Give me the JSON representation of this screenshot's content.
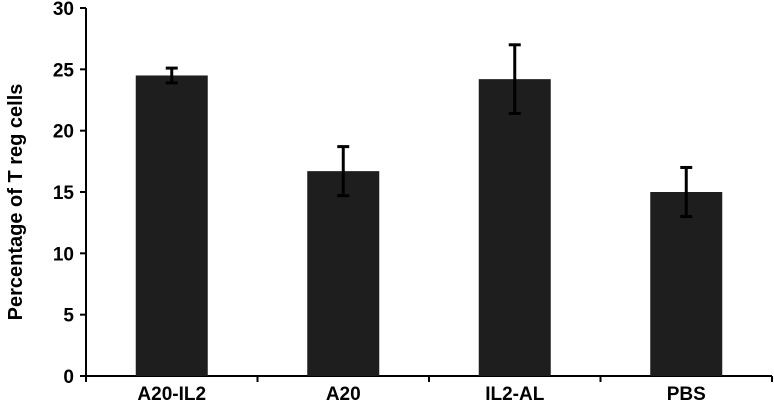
{
  "chart_data": {
    "type": "bar",
    "categories": [
      "A20-IL2",
      "A20",
      "IL2-AL",
      "PBS"
    ],
    "values": [
      24.5,
      16.7,
      24.2,
      15.0
    ],
    "error_bars": [
      0.6,
      2.0,
      2.8,
      2.0
    ],
    "title": "",
    "xlabel": "",
    "ylabel": "Percentage of T reg cells",
    "ylim": [
      0,
      30
    ],
    "yticks": [
      0,
      5,
      10,
      15,
      20,
      25,
      30
    ],
    "grid": false,
    "legend": "none",
    "colors": {
      "bar": "#1e1e1e",
      "error_bar": "#000000",
      "axis": "#000000"
    }
  }
}
